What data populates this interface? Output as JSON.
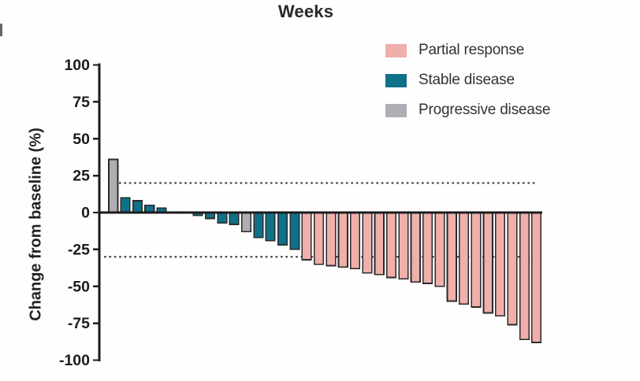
{
  "chart_data": {
    "type": "bar",
    "subtype": "waterfall",
    "title": "Weeks",
    "xlabel": "",
    "ylabel": "Change from baseline (%)",
    "ylim": [
      -100,
      100
    ],
    "yticks": [
      100,
      75,
      50,
      25,
      0,
      -25,
      -50,
      -75,
      -100
    ],
    "grid": false,
    "legend_position": "top-right",
    "reference_lines": [
      {
        "y": 20,
        "style": "dotted"
      },
      {
        "y": -30,
        "style": "dotted"
      }
    ],
    "legend": [
      {
        "label": "Partial response",
        "color": "#F0AFAB"
      },
      {
        "label": "Stable disease",
        "color": "#0F7089"
      },
      {
        "label": "Progressive disease",
        "color": "#AEAEB4"
      }
    ],
    "colors": {
      "bar_border": "#2B2B2B",
      "axis": "#1C1C1C",
      "tick_text": "#1C1C1C",
      "dotted_line": "#4A4A4A"
    },
    "bars": [
      {
        "value": 36,
        "category": "Progressive disease"
      },
      {
        "value": 10,
        "category": "Stable disease"
      },
      {
        "value": 8,
        "category": "Stable disease"
      },
      {
        "value": 5,
        "category": "Stable disease"
      },
      {
        "value": 3,
        "category": "Stable disease"
      },
      {
        "value": 0,
        "category": "none"
      },
      {
        "value": 0,
        "category": "none"
      },
      {
        "value": -2,
        "category": "Stable disease"
      },
      {
        "value": -4,
        "category": "Stable disease"
      },
      {
        "value": -7,
        "category": "Stable disease"
      },
      {
        "value": -8,
        "category": "Stable disease"
      },
      {
        "value": -13,
        "category": "Progressive disease"
      },
      {
        "value": -17,
        "category": "Stable disease"
      },
      {
        "value": -19,
        "category": "Stable disease"
      },
      {
        "value": -22,
        "category": "Stable disease"
      },
      {
        "value": -25,
        "category": "Stable disease"
      },
      {
        "value": -32,
        "category": "Partial response"
      },
      {
        "value": -35,
        "category": "Partial response"
      },
      {
        "value": -36,
        "category": "Partial response"
      },
      {
        "value": -37,
        "category": "Partial response"
      },
      {
        "value": -38,
        "category": "Partial response"
      },
      {
        "value": -41,
        "category": "Partial response"
      },
      {
        "value": -42,
        "category": "Partial response"
      },
      {
        "value": -44,
        "category": "Partial response"
      },
      {
        "value": -45,
        "category": "Partial response"
      },
      {
        "value": -47,
        "category": "Partial response"
      },
      {
        "value": -48,
        "category": "Partial response"
      },
      {
        "value": -50,
        "category": "Partial response"
      },
      {
        "value": -60,
        "category": "Partial response"
      },
      {
        "value": -62,
        "category": "Partial response"
      },
      {
        "value": -64,
        "category": "Partial response"
      },
      {
        "value": -68,
        "category": "Partial response"
      },
      {
        "value": -70,
        "category": "Partial response"
      },
      {
        "value": -76,
        "category": "Partial response"
      },
      {
        "value": -86,
        "category": "Partial response"
      },
      {
        "value": -88,
        "category": "Partial response"
      }
    ]
  }
}
